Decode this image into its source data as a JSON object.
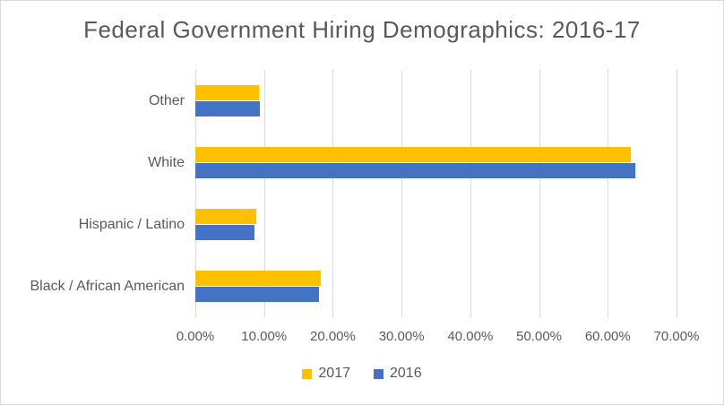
{
  "title": "Federal Government Hiring Demographics: 2016-17",
  "colors": {
    "series_2017": "#FFC000",
    "series_2016": "#4472C4",
    "gridline": "#D9D9D9",
    "text": "#595959",
    "chart_border": "#D9D9D9",
    "background": "#FFFFFF"
  },
  "chart_data": {
    "type": "bar",
    "orientation": "horizontal",
    "title": "Federal Government Hiring Demographics: 2016-17",
    "categories": [
      "Other",
      "White",
      "Hispanic / Latino",
      "Black / African American"
    ],
    "series": [
      {
        "name": "2017",
        "color": "#FFC000",
        "values": [
          9.2,
          63.3,
          8.8,
          18.2
        ]
      },
      {
        "name": "2016",
        "color": "#4472C4",
        "values": [
          9.4,
          64.0,
          8.6,
          18.0
        ]
      }
    ],
    "x_axis": {
      "min": 0,
      "max": 70,
      "tick_interval": 10,
      "tick_labels": [
        "0.00%",
        "10.00%",
        "20.00%",
        "30.00%",
        "40.00%",
        "50.00%",
        "60.00%",
        "70.00%"
      ],
      "unit": "percent"
    },
    "y_axis": {
      "label": ""
    },
    "grid": true,
    "legend": {
      "position": "bottom",
      "entries": [
        "2017",
        "2016"
      ]
    }
  }
}
